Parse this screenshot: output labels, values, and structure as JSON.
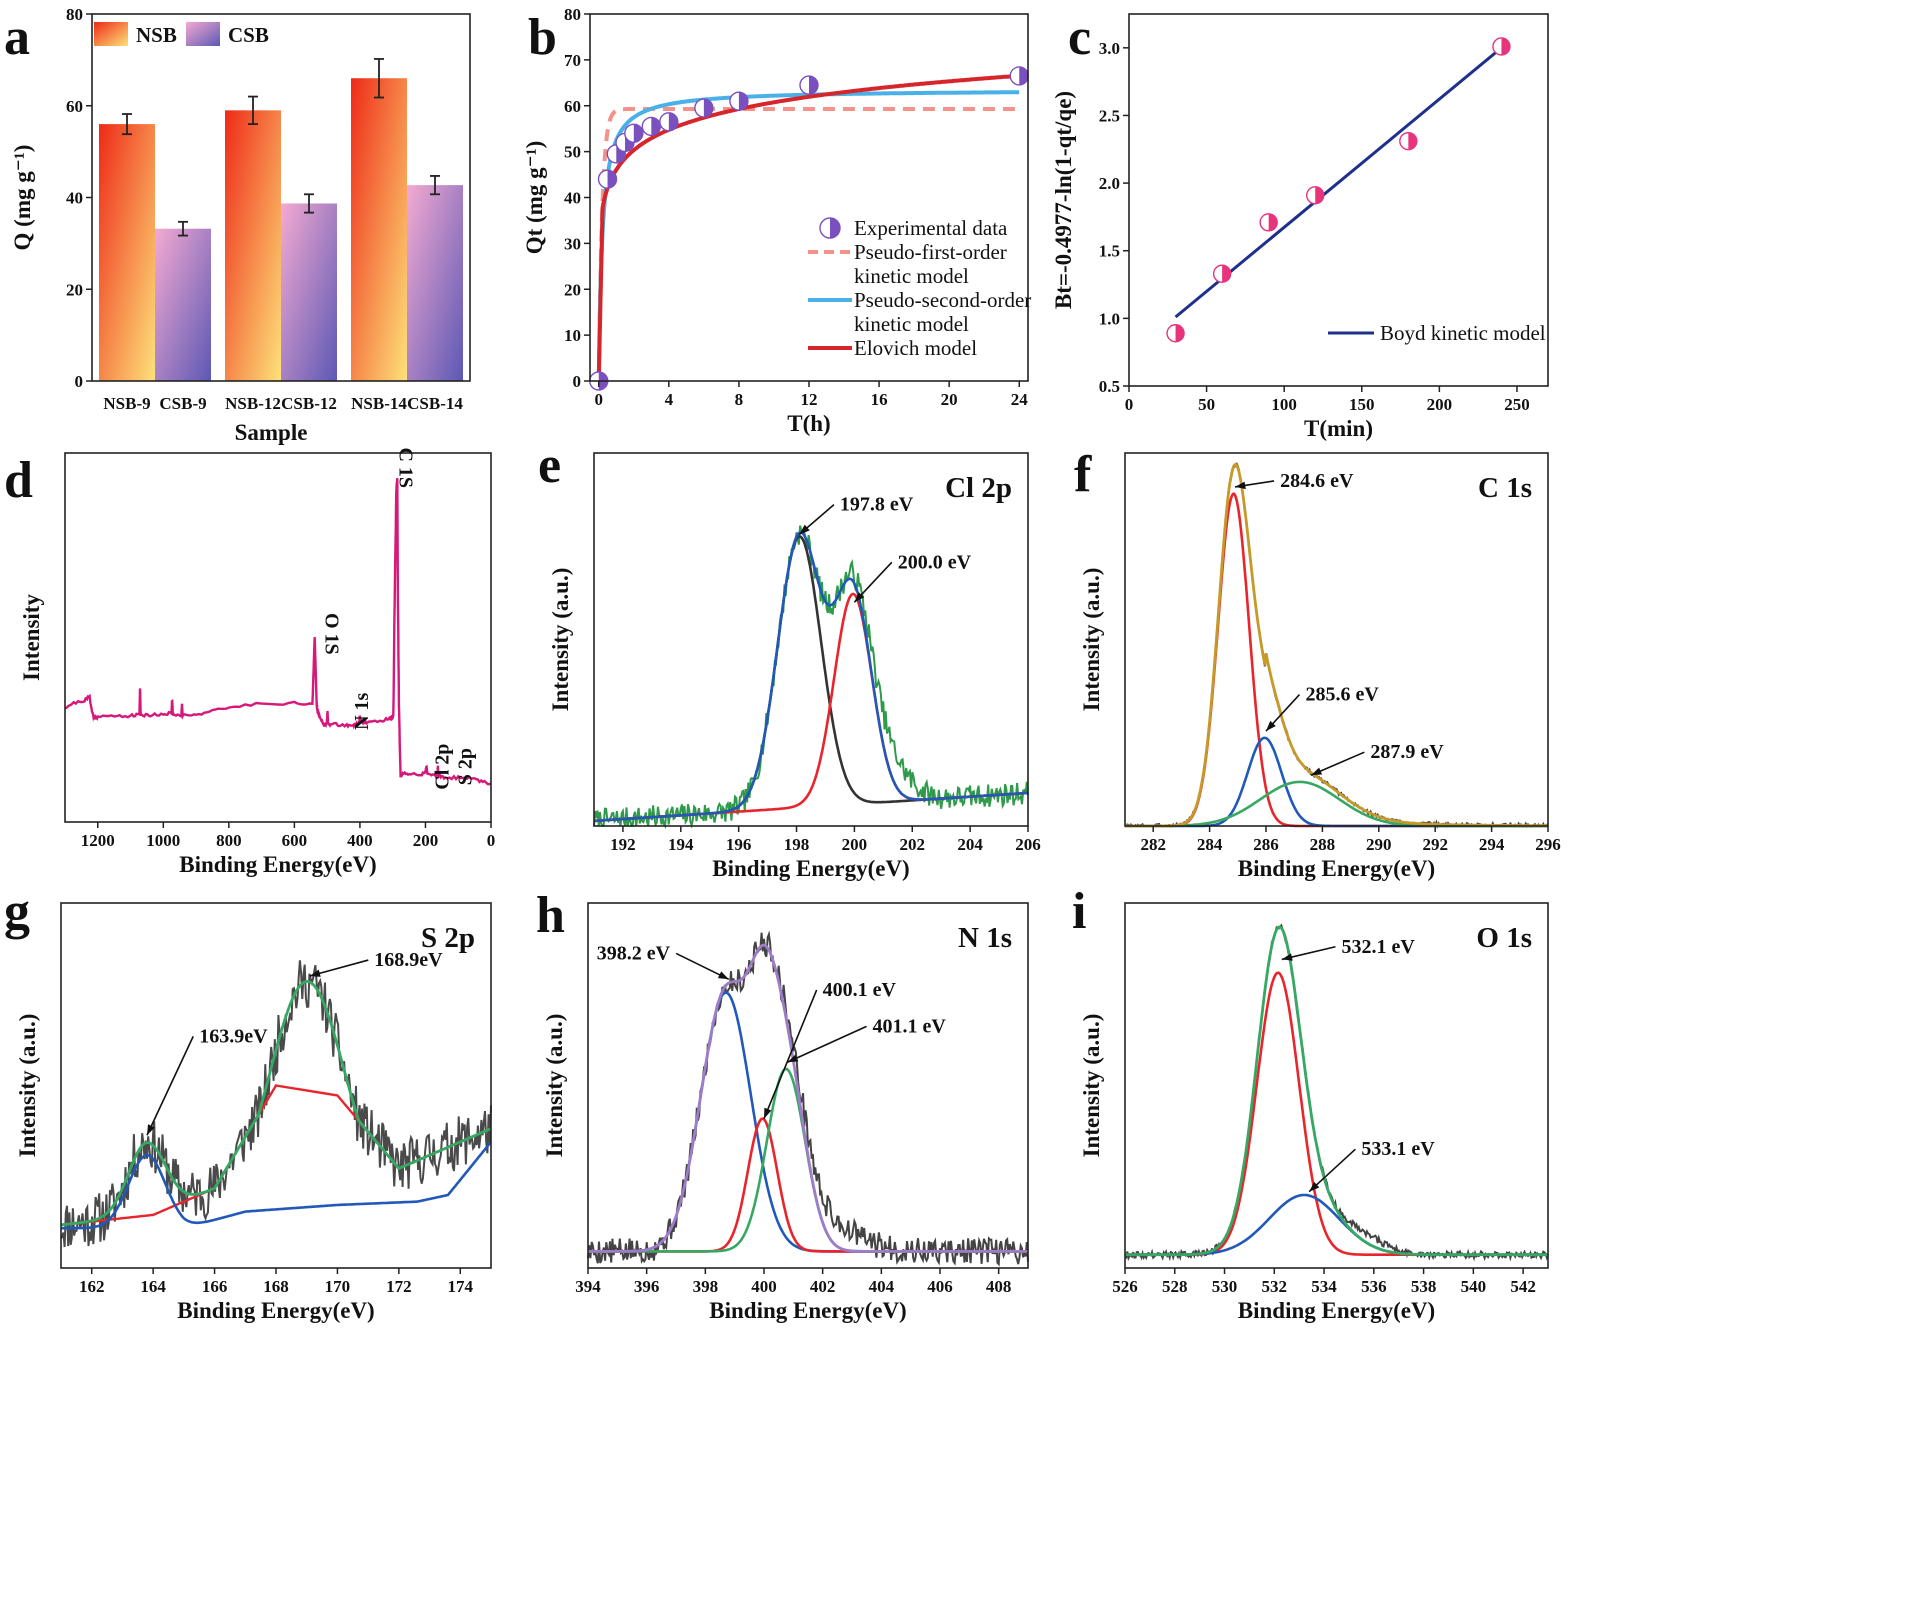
{
  "chart_data": [
    {
      "id": "a",
      "panel_label": "a",
      "type": "bar",
      "title": "",
      "xlabel": "Sample",
      "ylabel": "Q (mg g⁻¹)",
      "ylim": [
        0,
        80
      ],
      "yticks": [
        0,
        20,
        40,
        60,
        80
      ],
      "groups": [
        [
          "NSB-9",
          "CSB-9"
        ],
        [
          "NSB-12",
          "CSB-12"
        ],
        [
          "NSB-14",
          "CSB-14"
        ]
      ],
      "legend_position": "top-left",
      "series": [
        {
          "name": "NSB",
          "values": [
            56,
            59,
            66
          ],
          "errors": [
            2.2,
            3.0,
            4.2
          ],
          "gradient": [
            "#ee2a18",
            "#fde27a"
          ]
        },
        {
          "name": "CSB",
          "values": [
            33.2,
            38.7,
            42.7
          ],
          "errors": [
            1.5,
            2.0,
            2.0
          ],
          "gradient": [
            "#f4aad2",
            "#5c58b4"
          ]
        }
      ]
    },
    {
      "id": "b",
      "panel_label": "b",
      "type": "line",
      "xlabel": "T(h)",
      "ylabel": "Qt (mg g⁻¹)",
      "xlim": [
        -0.5,
        24.5
      ],
      "ylim": [
        0,
        80
      ],
      "xticks": [
        0,
        4,
        8,
        12,
        16,
        20,
        24
      ],
      "yticks": [
        0,
        10,
        20,
        30,
        40,
        50,
        60,
        70,
        80
      ],
      "legend_position": "bottom-right",
      "series": [
        {
          "name": "Experimental data",
          "kind": "marker",
          "color": "#7a4fbe",
          "x": [
            0,
            0.5,
            1,
            1.5,
            2,
            3,
            4,
            6,
            8,
            12,
            24
          ],
          "y": [
            0,
            44,
            49.5,
            52,
            54,
            55.5,
            56.5,
            59.5,
            61,
            64.5,
            66.5
          ]
        },
        {
          "name": "Pseudo-first-order",
          "name2": "kinetic model",
          "kind": "line",
          "dash": true,
          "color": "#f4928a",
          "model": "pfo",
          "qe": 59.3,
          "k": 5.0
        },
        {
          "name": "Pseudo-second-order",
          "name2": "kinetic model",
          "kind": "line",
          "color": "#4ab0e8",
          "model": "pso",
          "qe": 63.5,
          "k": 0.075
        },
        {
          "name": "Elovich model",
          "kind": "line",
          "color": "#d7262b",
          "model": "elovich",
          "a": 45.4,
          "b": 6.64,
          "c": 0.1
        }
      ]
    },
    {
      "id": "c",
      "panel_label": "c",
      "type": "scatter",
      "xlabel": "T(min)",
      "ylabel": "Bt=-0.4977-ln(1-qt/qe)",
      "xlim": [
        0,
        270
      ],
      "ylim": [
        0.5,
        3.25
      ],
      "xticks": [
        0,
        50,
        100,
        150,
        200,
        250
      ],
      "yticks": [
        0.5,
        1.0,
        1.5,
        2.0,
        2.5,
        3.0
      ],
      "legend_position": "bottom-right",
      "points": {
        "x": [
          30,
          60,
          90,
          120,
          180,
          240
        ],
        "y": [
          0.89,
          1.33,
          1.71,
          1.91,
          2.31,
          3.01
        ],
        "color": "#e8337d"
      },
      "fit": {
        "name": "Boyd kinetic model",
        "x": [
          30,
          240
        ],
        "y": [
          1.01,
          3.0
        ],
        "color": "#1f2f8c"
      }
    },
    {
      "id": "d",
      "panel_label": "d",
      "type": "line",
      "xlabel": "Binding Energy(eV)",
      "ylabel": "Intensity",
      "xlim": [
        1300,
        0
      ],
      "xticks": [
        1200,
        1000,
        800,
        600,
        400,
        200,
        0
      ],
      "ymax": 1.0,
      "series": [
        {
          "name": "survey",
          "color": "#d6187a",
          "x": [
            1300,
            1280,
            1240,
            1225,
            1218,
            1212,
            1200,
            1150,
            1100,
            1073,
            1071,
            1069,
            1067,
            1040,
            1000,
            975,
            973,
            971,
            969,
            945,
            943,
            941,
            939,
            900,
            850,
            800,
            700,
            600,
            545,
            538,
            532,
            529,
            522,
            510,
            503,
            501,
            499,
            497,
            480,
            440,
            420,
            410,
            402,
            400,
            398,
            396,
            380,
            330,
            310,
            298,
            294,
            289,
            286,
            284,
            281,
            276,
            270,
            250,
            220,
            202,
            199,
            197,
            194,
            170,
            166,
            164,
            162,
            160,
            140,
            100,
            60,
            30,
            0
          ],
          "y": [
            0.31,
            0.32,
            0.33,
            0.34,
            0.3,
            0.285,
            0.285,
            0.287,
            0.288,
            0.29,
            0.36,
            0.29,
            0.29,
            0.29,
            0.293,
            0.295,
            0.33,
            0.295,
            0.29,
            0.29,
            0.32,
            0.29,
            0.29,
            0.292,
            0.3,
            0.31,
            0.322,
            0.322,
            0.32,
            0.5,
            0.32,
            0.3,
            0.28,
            0.265,
            0.265,
            0.27,
            0.3,
            0.265,
            0.265,
            0.262,
            0.262,
            0.264,
            0.27,
            0.29,
            0.27,
            0.27,
            0.271,
            0.275,
            0.28,
            0.285,
            0.6,
            0.9,
            0.93,
            0.6,
            0.32,
            0.12,
            0.13,
            0.13,
            0.13,
            0.13,
            0.14,
            0.15,
            0.13,
            0.125,
            0.125,
            0.13,
            0.15,
            0.125,
            0.12,
            0.12,
            0.12,
            0.11,
            0.105
          ]
        }
      ],
      "annotations": [
        {
          "text": "C 1S",
          "x": 280,
          "y": 0.96,
          "rotate": 90
        },
        {
          "text": "O 1S",
          "x": 505,
          "y": 0.51,
          "rotate": 90
        },
        {
          "text": "N 1s",
          "x": 375,
          "y": 0.3,
          "rotate": -90
        },
        {
          "text": "Cl 2p",
          "x": 130,
          "y": 0.15,
          "rotate": -90
        },
        {
          "text": "S 2p",
          "x": 60,
          "y": 0.15,
          "rotate": -90
        }
      ]
    },
    {
      "id": "e",
      "panel_label": "e",
      "type": "line",
      "title": "Cl 2p",
      "xlabel": "Binding Energy(eV)",
      "ylabel": "Intensity (a.u.)",
      "xlim": [
        191,
        206
      ],
      "xticks": [
        192,
        194,
        196,
        198,
        200,
        202,
        204,
        206
      ],
      "ymax": 1.1,
      "noise": {
        "amp": 0.035,
        "seed": 7
      },
      "baseline": [
        0.015,
        0.0055
      ],
      "peaks": [
        {
          "center": 198.1,
          "amp": 0.8,
          "width": 0.75,
          "color": "#333333"
        },
        {
          "center": 199.95,
          "amp": 0.62,
          "width": 0.65,
          "color": "#e8252c"
        }
      ],
      "envelope": {
        "color": "#2059b8"
      },
      "raw": {
        "color": "#2f9a4a",
        "extra": [
          {
            "center": 201.2,
            "amp": 0.1,
            "width": 0.7
          }
        ]
      },
      "annotations": [
        {
          "text": "197.8 eV",
          "peak_x": 198.1,
          "peak_y": 0.86,
          "tx": 199.5,
          "ty": 0.93
        },
        {
          "text": "200.0 eV",
          "peak_x": 200.0,
          "peak_y": 0.66,
          "tx": 201.5,
          "ty": 0.76
        }
      ]
    },
    {
      "id": "f",
      "panel_label": "f",
      "type": "line",
      "title": "C 1s",
      "xlabel": "Binding Energy(eV)",
      "ylabel": "Intensity (a.u.)",
      "xlim": [
        281,
        296
      ],
      "xticks": [
        282,
        284,
        286,
        288,
        290,
        292,
        294,
        296
      ],
      "ymax": 1.1,
      "noise": {
        "amp": 0.006,
        "seed": 3
      },
      "baseline": [
        0.0,
        0.0
      ],
      "peaks": [
        {
          "center": 284.85,
          "amp": 0.98,
          "width": 0.55,
          "color": "#e8252c"
        },
        {
          "center": 285.95,
          "amp": 0.26,
          "width": 0.6,
          "color": "#2059b8"
        },
        {
          "center": 287.2,
          "amp": 0.13,
          "width": 1.4,
          "color": "#37a864"
        }
      ],
      "tail": {
        "amp": 0.05,
        "start": 286.0,
        "end": 296.0
      },
      "envelope": {
        "color": "#c59a2a"
      },
      "raw": {
        "color": "#444444",
        "extra": []
      },
      "annotations": [
        {
          "text": "284.6 eV",
          "peak_x": 284.9,
          "peak_y": 1.0,
          "tx": 286.5,
          "ty": 1.0
        },
        {
          "text": "285.6 eV",
          "peak_x": 286.0,
          "peak_y": 0.28,
          "tx": 287.4,
          "ty": 0.37
        },
        {
          "text": "287.9 eV",
          "peak_x": 287.6,
          "peak_y": 0.15,
          "tx": 289.7,
          "ty": 0.2
        }
      ]
    },
    {
      "id": "g",
      "panel_label": "g",
      "type": "line",
      "title": "S 2p",
      "xlabel": "Binding Energy(eV)",
      "ylabel": "Intensity (a.u.)",
      "xlim": [
        161,
        175
      ],
      "xticks": [
        162,
        164,
        166,
        168,
        170,
        172,
        174
      ],
      "ymax": 1.1,
      "noise": {
        "amp": 0.08,
        "seed": 11
      },
      "baseline": [
        0.14,
        0.0
      ],
      "peaks": [
        {
          "center": 163.8,
          "amp": 0.22,
          "width": 0.6,
          "color": "#2059b8"
        },
        {
          "center": 169.0,
          "amp": 0.68,
          "width": 1.2,
          "color": "#e8252c"
        }
      ],
      "bgcurve": {
        "color": "#2059b8",
        "x": [
          161,
          165,
          167,
          170,
          172.6,
          173.6,
          175
        ],
        "y": [
          0.12,
          0.12,
          0.17,
          0.19,
          0.2,
          0.22,
          0.38
        ]
      },
      "redbg": {
        "x": [
          161,
          164,
          166,
          168,
          170,
          172,
          175
        ],
        "y": [
          0.13,
          0.16,
          0.24,
          0.55,
          0.52,
          0.3,
          0.42
        ]
      },
      "envelope": {
        "color": "#37a864"
      },
      "raw": {
        "color": "#4a4a4a",
        "extra": []
      },
      "annotations": [
        {
          "text": "163.9eV",
          "peak_x": 163.8,
          "peak_y": 0.4,
          "tx": 165.5,
          "ty": 0.68
        },
        {
          "text": "168.9eV",
          "peak_x": 169.1,
          "peak_y": 0.88,
          "tx": 171.2,
          "ty": 0.91
        }
      ]
    },
    {
      "id": "h",
      "panel_label": "h",
      "type": "line",
      "title": "N 1s",
      "xlabel": "Binding Energy(eV)",
      "ylabel": "Intensity (a.u.)",
      "xlim": [
        394,
        409
      ],
      "xticks": [
        394,
        396,
        398,
        400,
        402,
        404,
        406,
        408
      ],
      "ymax": 1.1,
      "noise": {
        "amp": 0.04,
        "seed": 5
      },
      "baseline": [
        0.05,
        0.0
      ],
      "peaks": [
        {
          "center": 398.7,
          "amp": 0.78,
          "width": 0.85,
          "color": "#2059b8"
        },
        {
          "center": 399.95,
          "amp": 0.4,
          "width": 0.5,
          "color": "#e8252c"
        },
        {
          "center": 400.75,
          "amp": 0.55,
          "width": 0.65,
          "color": "#37a864"
        }
      ],
      "envelope": {
        "color": "#9e7cc8"
      },
      "raw": {
        "color": "#444444",
        "extra": [
          {
            "center": 402.2,
            "amp": 0.08,
            "width": 1.0
          }
        ]
      },
      "annotations": [
        {
          "text": "398.2 eV",
          "peak_x": 398.8,
          "peak_y": 0.87,
          "tx": 396.8,
          "ty": 0.93
        },
        {
          "text": "400.1 eV",
          "peak_x": 400.0,
          "peak_y": 0.45,
          "tx": 402.0,
          "ty": 0.82
        },
        {
          "text": "401.1 eV",
          "peak_x": 400.8,
          "peak_y": 0.62,
          "tx": 403.7,
          "ty": 0.71
        }
      ]
    },
    {
      "id": "i",
      "panel_label": "i",
      "type": "line",
      "title": "O 1s",
      "xlabel": "Binding Energy(eV)",
      "ylabel": "Intensity (a.u.)",
      "xlim": [
        526,
        543
      ],
      "xticks": [
        526,
        528,
        530,
        532,
        534,
        536,
        538,
        540,
        542
      ],
      "ymax": 1.1,
      "noise": {
        "amp": 0.01,
        "seed": 9
      },
      "baseline": [
        0.04,
        0.0
      ],
      "peaks": [
        {
          "center": 532.15,
          "amp": 0.85,
          "width": 0.85,
          "color": "#e8252c"
        },
        {
          "center": 533.2,
          "amp": 0.18,
          "width": 1.4,
          "color": "#2059b8"
        }
      ],
      "envelope": {
        "color": "#37a864"
      },
      "raw": {
        "color": "#444444",
        "extra": [
          {
            "center": 535.7,
            "amp": 0.03,
            "width": 0.8
          }
        ]
      },
      "annotations": [
        {
          "text": "532.1 eV",
          "peak_x": 532.3,
          "peak_y": 0.93,
          "tx": 534.7,
          "ty": 0.95
        },
        {
          "text": "533.1 eV",
          "peak_x": 533.4,
          "peak_y": 0.23,
          "tx": 535.5,
          "ty": 0.34
        }
      ]
    }
  ]
}
